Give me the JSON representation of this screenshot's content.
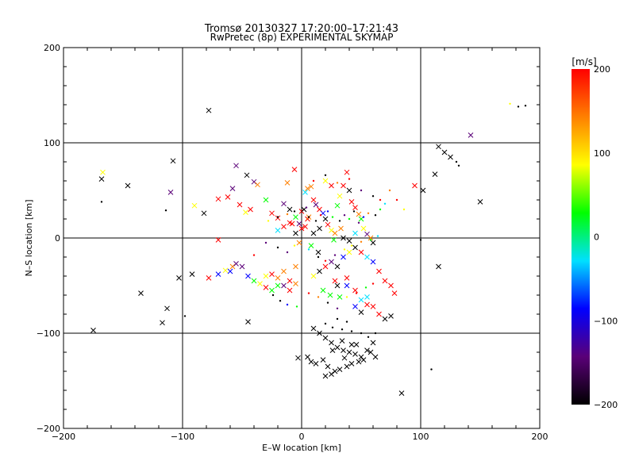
{
  "chart_data": {
    "type": "scatter",
    "title": "Tromsø 20130327 17:20:00–17:21:43",
    "subtitle": "RwPretec (8p) EXPERIMENTAL SKYMAP",
    "xlabel": "E–W location [km]",
    "ylabel": "N–S location [km]",
    "xlim": [
      -200,
      200
    ],
    "ylim": [
      -200,
      200
    ],
    "xticks": [
      -200,
      -100,
      0,
      100,
      200
    ],
    "yticks": [
      -200,
      -100,
      0,
      100,
      200
    ],
    "xtick_labels": [
      "−200",
      "−100",
      "0",
      "100",
      "200"
    ],
    "ytick_labels": [
      "−200",
      "−100",
      "0",
      "100",
      "200"
    ],
    "grid": true,
    "grid_lines": [
      -100,
      0,
      100
    ],
    "colorbar": {
      "label": "[m/s]",
      "min": -200,
      "max": 200,
      "ticks": [
        200,
        100,
        0,
        -100,
        -200
      ],
      "tick_labels": [
        "200",
        "100",
        "0",
        "−100",
        "−200"
      ],
      "stops": [
        "#000000",
        "#5a0078",
        "#0000ff",
        "#00e0ff",
        "#00ff00",
        "#ffff00",
        "#ff8000",
        "#ff0000"
      ]
    },
    "series": [
      {
        "name": "cross markers",
        "marker": "x",
        "points": [
          [
            -78,
            134
          ],
          [
            -175,
            -97
          ],
          [
            -135,
            -58
          ],
          [
            -113,
            -74
          ],
          [
            -117,
            -89
          ],
          [
            -103,
            -42
          ],
          [
            -92,
            -38
          ],
          [
            -78,
            -42
          ],
          [
            -70,
            -38
          ],
          [
            -64,
            -34
          ],
          [
            -58,
            -30
          ],
          [
            -70,
            -2
          ],
          [
            -45,
            -88
          ],
          [
            -167,
            69
          ],
          [
            -168,
            62
          ],
          [
            -146,
            55
          ],
          [
            -108,
            81
          ],
          [
            -110,
            48
          ],
          [
            -90,
            34
          ],
          [
            -82,
            26
          ],
          [
            -70,
            41
          ],
          [
            -62,
            43
          ],
          [
            -58,
            52
          ],
          [
            -55,
            76
          ],
          [
            -52,
            35
          ],
          [
            -46,
            66
          ],
          [
            -40,
            59
          ],
          [
            -43,
            30
          ],
          [
            -37,
            56
          ],
          [
            -47,
            27
          ],
          [
            -30,
            40
          ],
          [
            -25,
            26
          ],
          [
            -20,
            21
          ],
          [
            -15,
            36
          ],
          [
            -10,
            30
          ],
          [
            -8,
            15
          ],
          [
            -5,
            5
          ],
          [
            -2,
            -5
          ],
          [
            0,
            10
          ],
          [
            3,
            48
          ],
          [
            5,
            52
          ],
          [
            8,
            54
          ],
          [
            10,
            40
          ],
          [
            12,
            35
          ],
          [
            15,
            30
          ],
          [
            18,
            26
          ],
          [
            20,
            20
          ],
          [
            22,
            14
          ],
          [
            25,
            8
          ],
          [
            28,
            5
          ],
          [
            30,
            34
          ],
          [
            32,
            44
          ],
          [
            35,
            55
          ],
          [
            38,
            69
          ],
          [
            40,
            50
          ],
          [
            42,
            38
          ],
          [
            45,
            32
          ],
          [
            48,
            25
          ],
          [
            50,
            20
          ],
          [
            52,
            10
          ],
          [
            55,
            4
          ],
          [
            58,
            0
          ],
          [
            60,
            -5
          ],
          [
            35,
            0
          ],
          [
            40,
            -3
          ],
          [
            45,
            5
          ],
          [
            10,
            5
          ],
          [
            15,
            10
          ],
          [
            5,
            20
          ],
          [
            0,
            28
          ],
          [
            -5,
            22
          ],
          [
            -10,
            16
          ],
          [
            -15,
            12
          ],
          [
            -20,
            8
          ],
          [
            -60,
            -35
          ],
          [
            -55,
            -27
          ],
          [
            -50,
            -30
          ],
          [
            -45,
            -40
          ],
          [
            -40,
            -45
          ],
          [
            -35,
            -48
          ],
          [
            -30,
            -40
          ],
          [
            -25,
            -38
          ],
          [
            -20,
            -42
          ],
          [
            -15,
            -35
          ],
          [
            -10,
            -45
          ],
          [
            -5,
            -30
          ],
          [
            -20,
            -50
          ],
          [
            -25,
            -55
          ],
          [
            -30,
            -52
          ],
          [
            -15,
            -50
          ],
          [
            -10,
            -55
          ],
          [
            -5,
            -48
          ],
          [
            10,
            -40
          ],
          [
            15,
            -35
          ],
          [
            20,
            -30
          ],
          [
            25,
            -25
          ],
          [
            30,
            -30
          ],
          [
            35,
            -20
          ],
          [
            40,
            -15
          ],
          [
            45,
            -10
          ],
          [
            50,
            -15
          ],
          [
            55,
            -20
          ],
          [
            60,
            -25
          ],
          [
            65,
            -35
          ],
          [
            70,
            -45
          ],
          [
            75,
            -50
          ],
          [
            18,
            -55
          ],
          [
            24,
            -60
          ],
          [
            32,
            -62
          ],
          [
            38,
            -50
          ],
          [
            45,
            -55
          ],
          [
            50,
            -65
          ],
          [
            55,
            -70
          ],
          [
            60,
            -72
          ],
          [
            65,
            -80
          ],
          [
            70,
            -85
          ],
          [
            75,
            -82
          ],
          [
            78,
            -58
          ],
          [
            10,
            -95
          ],
          [
            15,
            -100
          ],
          [
            20,
            -105
          ],
          [
            25,
            -110
          ],
          [
            30,
            -115
          ],
          [
            35,
            -118
          ],
          [
            40,
            -120
          ],
          [
            45,
            -122
          ],
          [
            50,
            -125
          ],
          [
            55,
            -118
          ],
          [
            60,
            -110
          ],
          [
            5,
            -125
          ],
          [
            8,
            -130
          ],
          [
            12,
            -132
          ],
          [
            18,
            -128
          ],
          [
            22,
            -135
          ],
          [
            28,
            -140
          ],
          [
            32,
            -138
          ],
          [
            38,
            -135
          ],
          [
            42,
            -132
          ],
          [
            48,
            -130
          ],
          [
            52,
            -128
          ],
          [
            58,
            -120
          ],
          [
            62,
            -125
          ],
          [
            26,
            -118
          ],
          [
            34,
            -108
          ],
          [
            46,
            -112
          ],
          [
            -3,
            -126
          ],
          [
            20,
            -145
          ],
          [
            25,
            -143
          ],
          [
            42,
            -112
          ],
          [
            36,
            -126
          ],
          [
            50,
            -78
          ],
          [
            55,
            -62
          ],
          [
            45,
            -72
          ],
          [
            38,
            -42
          ],
          [
            30,
            -50
          ],
          [
            28,
            -45
          ],
          [
            95,
            55
          ],
          [
            102,
            50
          ],
          [
            112,
            67
          ],
          [
            115,
            96
          ],
          [
            120,
            90
          ],
          [
            125,
            85
          ],
          [
            142,
            108
          ],
          [
            150,
            38
          ],
          [
            115,
            -30
          ],
          [
            84,
            -163
          ],
          [
            20,
            60
          ],
          [
            25,
            55
          ],
          [
            -12,
            58
          ],
          [
            -6,
            72
          ],
          [
            2,
            30
          ],
          [
            6,
            22
          ],
          [
            3,
            12
          ],
          [
            8,
            -8
          ],
          [
            14,
            -15
          ],
          [
            27,
            -2
          ],
          [
            33,
            10
          ],
          [
            -2,
            15
          ]
        ]
      },
      {
        "name": "dot markers",
        "marker": "dot",
        "points": [
          [
            175,
            141
          ],
          [
            182,
            138
          ],
          [
            188,
            139
          ],
          [
            130,
            80
          ],
          [
            132,
            76
          ],
          [
            100,
            -2
          ],
          [
            109,
            -138
          ],
          [
            -98,
            -82
          ],
          [
            -168,
            38
          ],
          [
            -114,
            29
          ],
          [
            -40,
            -18
          ],
          [
            -28,
            18
          ],
          [
            -20,
            22
          ],
          [
            -12,
            25
          ],
          [
            -6,
            28
          ],
          [
            4,
            32
          ],
          [
            6,
            22
          ],
          [
            12,
            18
          ],
          [
            16,
            24
          ],
          [
            22,
            28
          ],
          [
            26,
            22
          ],
          [
            32,
            18
          ],
          [
            36,
            24
          ],
          [
            40,
            20
          ],
          [
            44,
            28
          ],
          [
            48,
            16
          ],
          [
            52,
            22
          ],
          [
            56,
            26
          ],
          [
            62,
            24
          ],
          [
            66,
            30
          ],
          [
            70,
            36
          ],
          [
            -30,
            -5
          ],
          [
            -20,
            -10
          ],
          [
            -12,
            -15
          ],
          [
            -6,
            -8
          ],
          [
            6,
            -12
          ],
          [
            14,
            -20
          ],
          [
            20,
            -24
          ],
          [
            28,
            -18
          ],
          [
            36,
            -12
          ],
          [
            42,
            -8
          ],
          [
            50,
            -4
          ],
          [
            58,
            -2
          ],
          [
            64,
            2
          ],
          [
            -24,
            -60
          ],
          [
            -18,
            -66
          ],
          [
            -12,
            -70
          ],
          [
            -4,
            -72
          ],
          [
            6,
            -58
          ],
          [
            14,
            -62
          ],
          [
            22,
            -68
          ],
          [
            30,
            -74
          ],
          [
            38,
            -62
          ],
          [
            46,
            -58
          ],
          [
            54,
            -52
          ],
          [
            60,
            -48
          ],
          [
            10,
            60
          ],
          [
            20,
            66
          ],
          [
            30,
            58
          ],
          [
            40,
            62
          ],
          [
            50,
            50
          ],
          [
            60,
            44
          ],
          [
            66,
            40
          ],
          [
            74,
            50
          ],
          [
            80,
            40
          ],
          [
            86,
            30
          ],
          [
            20,
            -90
          ],
          [
            26,
            -94
          ],
          [
            34,
            -96
          ],
          [
            42,
            -98
          ],
          [
            50,
            -100
          ],
          [
            56,
            -104
          ],
          [
            62,
            -100
          ],
          [
            30,
            -85
          ],
          [
            38,
            -88
          ]
        ]
      }
    ]
  }
}
